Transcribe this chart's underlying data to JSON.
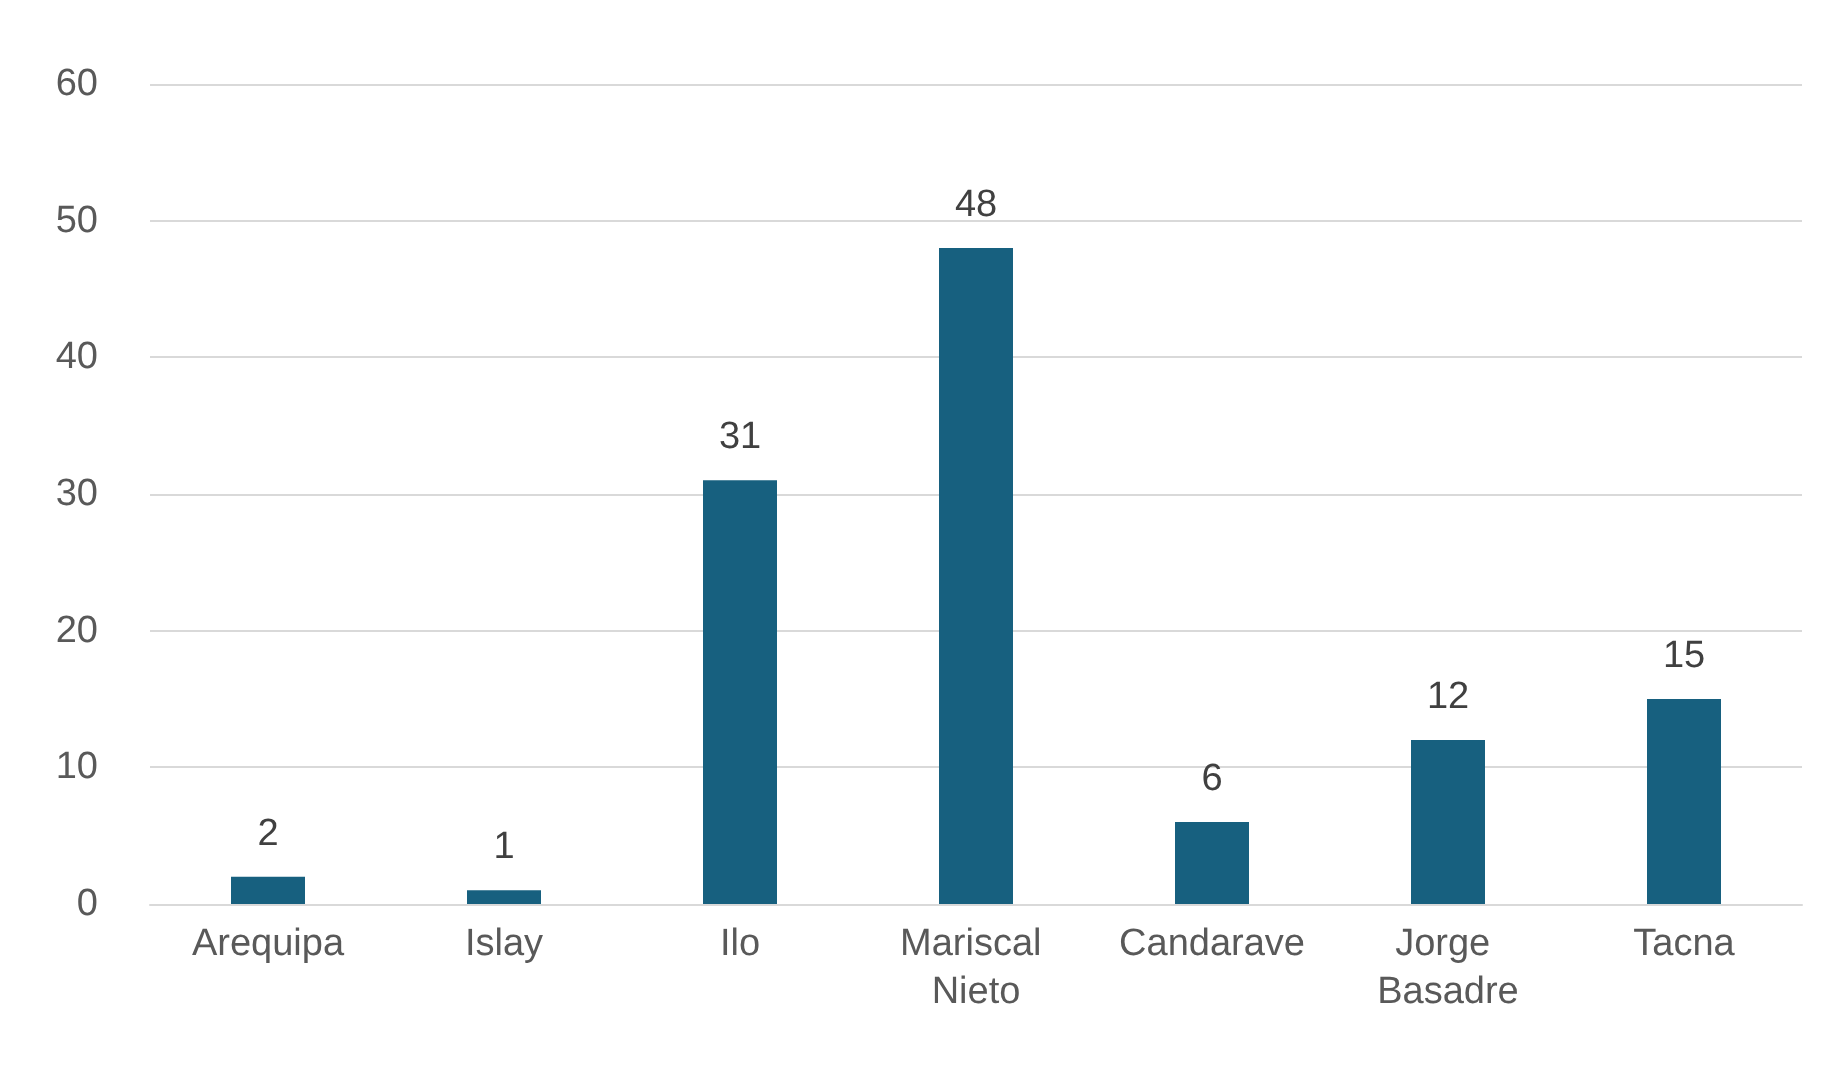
{
  "chart_data": {
    "type": "bar",
    "categories": [
      "Arequipa",
      "Islay",
      "Ilo",
      "Mariscal Nieto",
      "Candarave",
      "Jorge Basadre",
      "Tacna"
    ],
    "values": [
      2,
      1,
      31,
      48,
      6,
      12,
      15
    ],
    "color": "#17607f",
    "ylim": [
      0,
      60
    ],
    "yticks": [
      0,
      10,
      20,
      30,
      40,
      50,
      60
    ],
    "grid": "y",
    "data_labels": true
  }
}
